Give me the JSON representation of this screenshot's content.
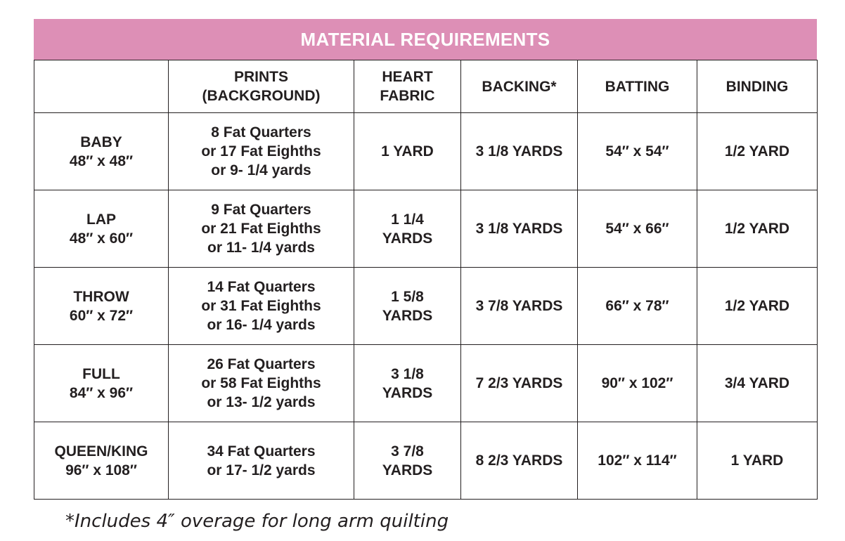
{
  "title": "MATERIAL REQUIREMENTS",
  "colors": {
    "title_background": "#dd8fb6",
    "title_text": "#ffffff",
    "text": "#231f20",
    "border": "#231f20"
  },
  "headers": [
    "",
    "PRINTS\n(BACKGROUND)",
    "HEART\nFABRIC",
    "BACKING*",
    "BATTING",
    "BINDING"
  ],
  "rows": [
    [
      "BABY\n48″ x 48″",
      "8 Fat Quarters\nor 17 Fat Eighths\nor 9- 1/4 yards",
      "1 YARD",
      "3 1/8 YARDS",
      "54″ x 54″",
      "1/2 YARD"
    ],
    [
      "LAP\n48″ x 60″",
      "9 Fat Quarters\nor 21 Fat Eighths\nor 11- 1/4 yards",
      "1 1/4\nYARDS",
      "3 1/8 YARDS",
      "54″ x 66″",
      "1/2 YARD"
    ],
    [
      "THROW\n60″ x 72″",
      "14 Fat Quarters\nor 31 Fat Eighths\nor 16- 1/4 yards",
      "1 5/8\nYARDS",
      "3 7/8 YARDS",
      "66″ x 78″",
      "1/2 YARD"
    ],
    [
      "FULL\n84″ x 96″",
      "26 Fat Quarters\nor 58 Fat Eighths\nor 13- 1/2 yards",
      "3 1/8\nYARDS",
      "7 2/3 YARDS",
      "90″ x 102″",
      "3/4 YARD"
    ],
    [
      "QUEEN/KING\n96″ x 108″",
      "34 Fat Quarters\nor 17- 1/2 yards",
      "3 7/8\nYARDS",
      "8 2/3 YARDS",
      "102″ x 114″",
      "1 YARD"
    ]
  ],
  "footnote": "*Includes 4″ overage for long arm quilting"
}
